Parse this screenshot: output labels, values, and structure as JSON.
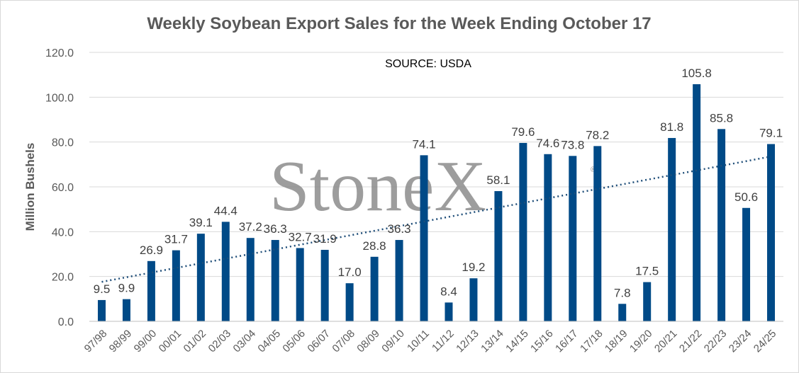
{
  "chart_data": {
    "type": "bar",
    "title": "Weekly Soybean Export Sales for the Week Ending October 17",
    "annotation": "SOURCE: USDA",
    "ylabel": "Million Bushels",
    "xlabel": "",
    "ylim": [
      0,
      120
    ],
    "yticks": [
      "0.0",
      "20.0",
      "40.0",
      "60.0",
      "80.0",
      "100.0",
      "120.0"
    ],
    "grid": true,
    "trendline": "linear, dotted",
    "colors": {
      "bar": "#004a87",
      "trend": "#1f4e79",
      "grid": "#d9d9d9"
    },
    "watermark": "StoneX",
    "categories": [
      "97/98",
      "98/99",
      "99/00",
      "00/01",
      "01/02",
      "02/03",
      "03/04",
      "04/05",
      "05/06",
      "06/07",
      "07/08",
      "08/09",
      "09/10",
      "10/11",
      "11/12",
      "12/13",
      "13/14",
      "14/15",
      "15/16",
      "16/17",
      "17/18",
      "18/19",
      "19/20",
      "20/21",
      "21/22",
      "22/23",
      "23/24",
      "24/25"
    ],
    "values": [
      9.5,
      9.9,
      26.9,
      31.7,
      39.1,
      44.4,
      37.2,
      36.3,
      32.7,
      31.9,
      17.0,
      28.8,
      36.3,
      74.1,
      8.4,
      19.2,
      58.1,
      79.6,
      74.6,
      73.8,
      78.2,
      7.8,
      17.5,
      81.8,
      105.8,
      85.8,
      50.6,
      79.1
    ],
    "value_labels": [
      "9.5",
      "9.9",
      "26.9",
      "31.7",
      "39.1",
      "44.4",
      "37.2",
      "36.3",
      "32.7",
      "31.9",
      "17.0",
      "28.8",
      "36.3",
      "74.1",
      "8.4",
      "19.2",
      "58.1",
      "79.6",
      "74.6",
      "73.8",
      "78.2",
      "7.8",
      "17.5",
      "81.8",
      "105.8",
      "85.8",
      "50.6",
      "79.1"
    ]
  }
}
